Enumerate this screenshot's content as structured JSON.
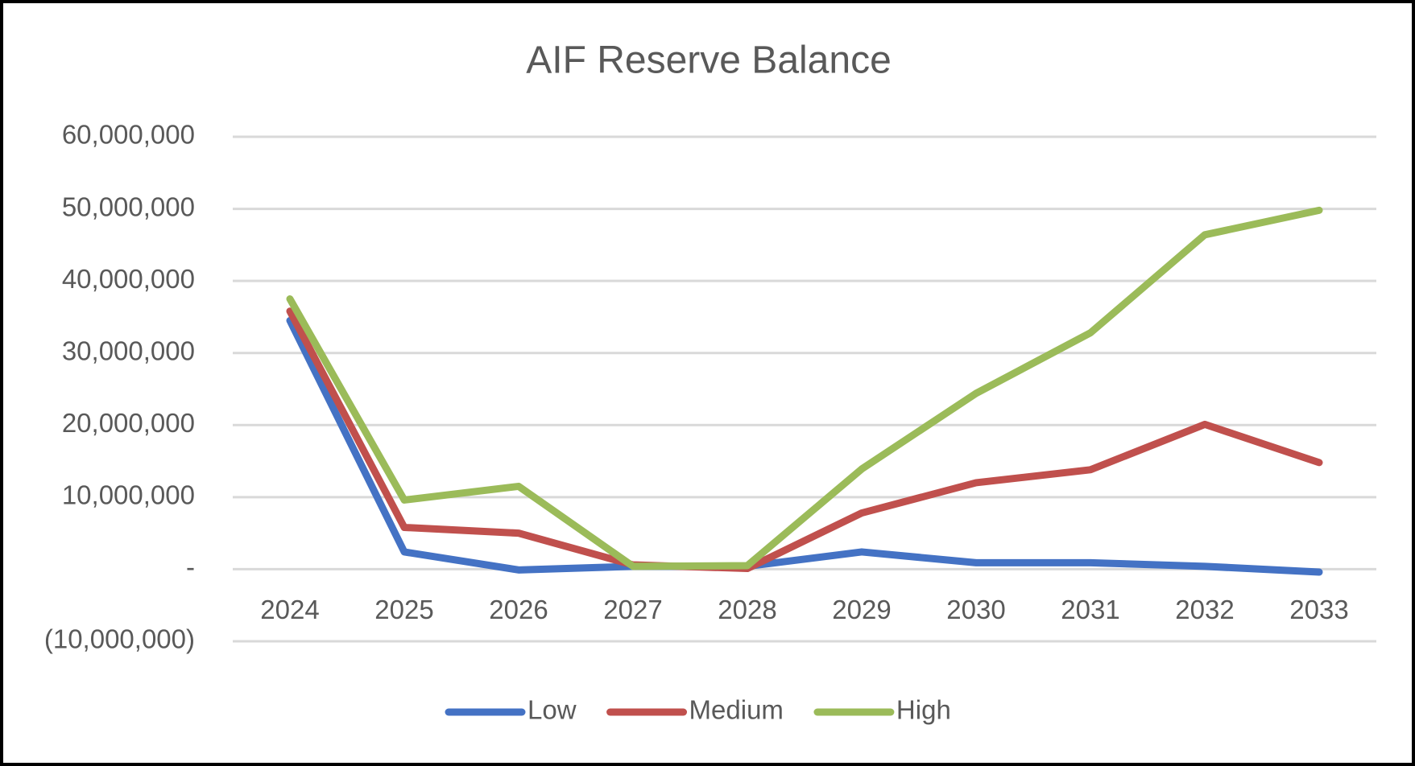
{
  "chart_data": {
    "type": "line",
    "title": "AIF Reserve Balance",
    "categories": [
      "2024",
      "2025",
      "2026",
      "2027",
      "2028",
      "2029",
      "2030",
      "2031",
      "2032",
      "2033"
    ],
    "series": [
      {
        "name": "Low",
        "color": "#4472c4",
        "values": [
          34500000,
          2400000,
          -100000,
          400000,
          400000,
          2400000,
          900000,
          900000,
          400000,
          -400000
        ]
      },
      {
        "name": "Medium",
        "color": "#c0504d",
        "values": [
          35800000,
          5800000,
          5000000,
          600000,
          100000,
          7800000,
          12000000,
          13800000,
          20100000,
          14800000
        ]
      },
      {
        "name": "High",
        "color": "#9bbb59",
        "values": [
          37500000,
          9600000,
          11500000,
          400000,
          500000,
          13900000,
          24400000,
          32800000,
          46400000,
          49800000
        ]
      }
    ],
    "ylim": [
      -10000000,
      60000000
    ],
    "yticks": [
      {
        "value": -10000000,
        "label": "(10,000,000)"
      },
      {
        "value": 0,
        "label": "-"
      },
      {
        "value": 10000000,
        "label": "10,000,000"
      },
      {
        "value": 20000000,
        "label": "20,000,000"
      },
      {
        "value": 30000000,
        "label": "30,000,000"
      },
      {
        "value": 40000000,
        "label": "40,000,000"
      },
      {
        "value": 50000000,
        "label": "50,000,000"
      },
      {
        "value": 60000000,
        "label": "60,000,000"
      }
    ],
    "grid": true,
    "legend": "bottom"
  }
}
